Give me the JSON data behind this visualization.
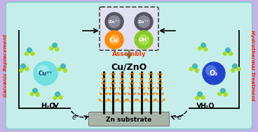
{
  "bg_outer": "#c8b0e8",
  "bg_inner": "#c5eeeb",
  "left_label": "Galvanic Replacement",
  "right_label": "Hydrothermal Treatment",
  "label_color": "#ff2200",
  "cu2plus_color": "#70e0e0",
  "cu2plus_text": "Cu²⁺",
  "o2_color": "#2244cc",
  "o2_text": "O₂",
  "zn_color": "#555560",
  "cu_ball_color": "#ff8800",
  "oh_ball_color": "#88cc22",
  "assembly_color": "#ff3300",
  "h2o_label": "H₂O",
  "e_label": "e⁻",
  "tree_trunk_color": "#111100",
  "tree_branch_color": "#ff8800",
  "substrate_color": "#a8b4a8",
  "water_o_color": "#44b8b8",
  "water_h_color": "#aadd22",
  "cunzo_label": "Cu/ZnO",
  "substrate_label": "Zn substrate",
  "assembly_label": "Assembly",
  "dashed_box_fill": "#e0e0f0",
  "arrow_color": "#111111",
  "assembly_arrow_color": "#996633"
}
